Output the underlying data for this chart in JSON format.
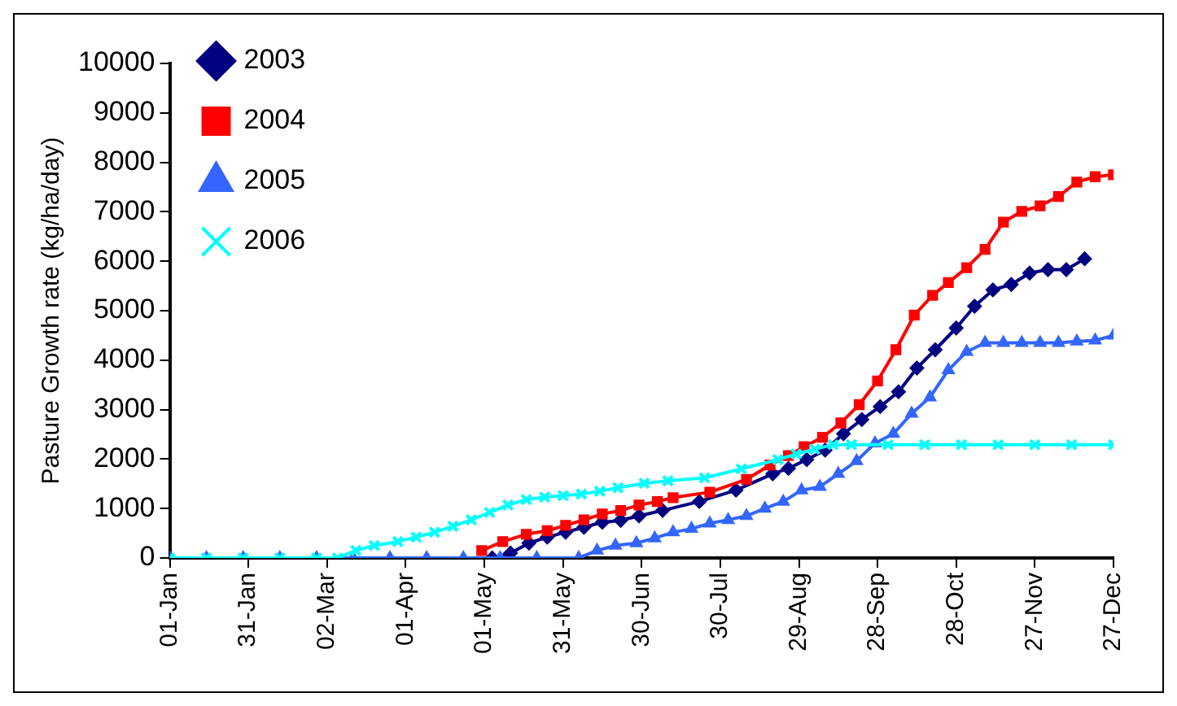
{
  "chart_data": {
    "type": "line",
    "ylabel": "Pasture Growth rate (kg/ha/day)",
    "xlim": [
      "--01-01",
      "--12-27"
    ],
    "xticks": [
      {
        "value": "--01-01",
        "label": "01-Jan"
      },
      {
        "value": "--01-31",
        "label": "31-Jan"
      },
      {
        "value": "--03-02",
        "label": "02-Mar"
      },
      {
        "value": "--04-01",
        "label": "01-Apr"
      },
      {
        "value": "--05-01",
        "label": "01-May"
      },
      {
        "value": "--05-31",
        "label": "31-May"
      },
      {
        "value": "--06-30",
        "label": "30-Jun"
      },
      {
        "value": "--07-30",
        "label": "30-Jul"
      },
      {
        "value": "--08-29",
        "label": "29-Aug"
      },
      {
        "value": "--09-28",
        "label": "28-Sep"
      },
      {
        "value": "--10-28",
        "label": "28-Oct"
      },
      {
        "value": "--11-27",
        "label": "27-Nov"
      },
      {
        "value": "--12-27",
        "label": "27-Dec"
      }
    ],
    "ylim": [
      0,
      10000
    ],
    "yticks": [
      0,
      1000,
      2000,
      3000,
      4000,
      5000,
      6000,
      7000,
      8000,
      9000,
      10000
    ],
    "legend": "top left",
    "series": [
      {
        "name": "2003",
        "color": "#000080",
        "marker": "diamond",
        "x": [
          "--05-04",
          "--05-11",
          "--05-18",
          "--05-25",
          "--06-01",
          "--06-08",
          "--06-15",
          "--06-22",
          "--06-29",
          "--07-08",
          "--07-22",
          "--08-05",
          "--08-19",
          "--08-25",
          "--09-01",
          "--09-08",
          "--09-15",
          "--09-22",
          "--09-29",
          "--10-06",
          "--10-13",
          "--10-20",
          "--10-28",
          "--11-04",
          "--11-11",
          "--11-18",
          "--11-25",
          "--12-02",
          "--12-09",
          "--12-16"
        ],
        "values": [
          0,
          100,
          300,
          420,
          520,
          620,
          720,
          760,
          850,
          960,
          1140,
          1370,
          1700,
          1810,
          1990,
          2180,
          2510,
          2800,
          3060,
          3360,
          3840,
          4210,
          4650,
          5090,
          5420,
          5530,
          5760,
          5830,
          5830,
          6050
        ]
      },
      {
        "name": "2004",
        "color": "#ff0000",
        "marker": "square",
        "x": [
          "--04-30",
          "--05-08",
          "--05-17",
          "--05-25",
          "--06-01",
          "--06-08",
          "--06-15",
          "--06-22",
          "--06-29",
          "--07-06",
          "--07-12",
          "--07-26",
          "--08-09",
          "--08-18",
          "--08-25",
          "--08-31",
          "--09-07",
          "--09-14",
          "--09-21",
          "--09-28",
          "--10-05",
          "--10-12",
          "--10-19",
          "--10-25",
          "--11-01",
          "--11-08",
          "--11-15",
          "--11-22",
          "--11-29",
          "--12-06",
          "--12-13",
          "--12-20",
          "--12-27"
        ],
        "values": [
          150,
          330,
          480,
          550,
          660,
          770,
          890,
          960,
          1070,
          1140,
          1220,
          1330,
          1590,
          1880,
          2070,
          2250,
          2440,
          2730,
          3100,
          3580,
          4210,
          4910,
          5310,
          5570,
          5870,
          6240,
          6790,
          7010,
          7120,
          7310,
          7600,
          7710,
          7750
        ]
      },
      {
        "name": "2005",
        "color": "#3366ff",
        "marker": "triangle",
        "x": [
          "--01-01",
          "--01-15",
          "--01-29",
          "--02-12",
          "--02-26",
          "--03-12",
          "--03-26",
          "--04-09",
          "--04-23",
          "--05-07",
          "--05-21",
          "--06-06",
          "--06-13",
          "--06-20",
          "--06-28",
          "--07-05",
          "--07-12",
          "--07-19",
          "--07-26",
          "--08-02",
          "--08-09",
          "--08-16",
          "--08-23",
          "--08-30",
          "--09-06",
          "--09-13",
          "--09-20",
          "--09-27",
          "--10-04",
          "--10-11",
          "--10-18",
          "--10-25",
          "--11-01",
          "--11-08",
          "--11-15",
          "--11-22",
          "--11-29",
          "--12-06",
          "--12-13",
          "--12-20",
          "--12-27"
        ],
        "values": [
          0,
          0,
          0,
          0,
          0,
          0,
          0,
          0,
          0,
          0,
          0,
          0,
          150,
          250,
          300,
          400,
          520,
          590,
          700,
          770,
          850,
          1000,
          1140,
          1370,
          1440,
          1700,
          1960,
          2320,
          2510,
          2920,
          3250,
          3800,
          4170,
          4350,
          4350,
          4350,
          4350,
          4350,
          4380,
          4400,
          4500
        ]
      },
      {
        "name": "2006",
        "color": "#00ffff",
        "marker": "cross",
        "x": [
          "--01-01",
          "--01-15",
          "--01-29",
          "--02-12",
          "--02-26",
          "--03-06",
          "--03-13",
          "--03-20",
          "--03-29",
          "--04-05",
          "--04-12",
          "--04-19",
          "--04-26",
          "--05-03",
          "--05-10",
          "--05-17",
          "--05-24",
          "--05-31",
          "--06-07",
          "--06-14",
          "--06-21",
          "--07-01",
          "--07-10",
          "--07-24",
          "--08-07",
          "--08-21",
          "--08-28",
          "--09-04",
          "--09-11",
          "--09-18",
          "--10-02",
          "--10-16",
          "--10-30",
          "--11-13",
          "--11-27",
          "--12-11",
          "--12-27"
        ],
        "values": [
          0,
          0,
          0,
          0,
          0,
          0,
          150,
          250,
          330,
          420,
          520,
          640,
          770,
          920,
          1070,
          1180,
          1230,
          1260,
          1290,
          1350,
          1420,
          1510,
          1560,
          1620,
          1800,
          1990,
          2100,
          2200,
          2290,
          2290,
          2290,
          2290,
          2290,
          2290,
          2290,
          2290,
          2290
        ]
      }
    ]
  }
}
